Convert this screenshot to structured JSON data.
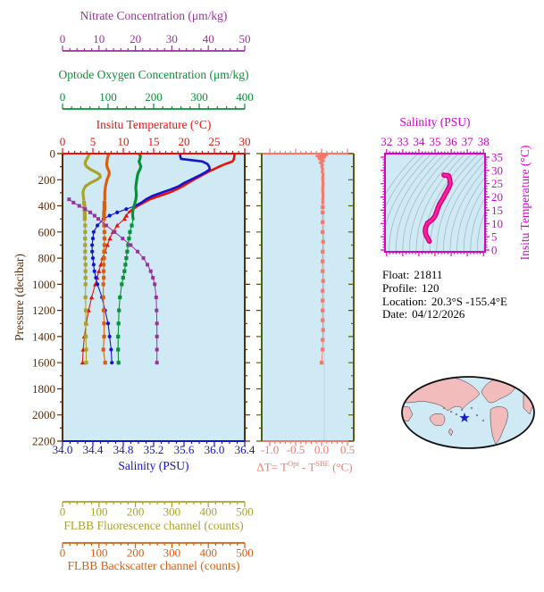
{
  "figure": {
    "nitrate_axis": {
      "title": "Nitrate Concentration (μm/kg)",
      "color": "#993399",
      "min": 0,
      "max": 50,
      "tick_vals": [
        0,
        10,
        20,
        30,
        40,
        50
      ],
      "tick_labels": [
        "0",
        "10",
        "20",
        "30",
        "40",
        "50"
      ],
      "minor_step": 2
    },
    "oxygen_axis": {
      "title": "Optode Oxygen Concentration (μm/kg)",
      "color": "#0a9038",
      "min": 0,
      "max": 400,
      "tick_vals": [
        0,
        100,
        200,
        300,
        400
      ],
      "tick_labels": [
        "0",
        "100",
        "200",
        "300",
        "400"
      ],
      "minor_step": 20
    },
    "temperature_axis": {
      "title": "Insitu Temperature (°C)",
      "color": "#ea130b",
      "min": 0,
      "max": 30,
      "tick_vals": [
        0,
        5,
        10,
        15,
        20,
        25,
        30
      ],
      "tick_labels": [
        "0",
        "5",
        "10",
        "15",
        "20",
        "25",
        "30"
      ],
      "minor_step": 1
    },
    "salinity_axis": {
      "title": "Salinity (PSU)",
      "color": "#1414cc",
      "min": 34.0,
      "max": 36.4,
      "tick_vals": [
        34.0,
        34.4,
        34.8,
        35.2,
        35.6,
        36.0,
        36.4
      ],
      "tick_labels": [
        "34.0",
        "34.4",
        "34.8",
        "35.2",
        "35.6",
        "36.0",
        "36.4"
      ],
      "minor_step": 0.1
    },
    "pressure_axis": {
      "title": "Pressure (decibar)",
      "color": "#5a2d0a",
      "min": 0,
      "max": 2200,
      "tick_vals": [
        0,
        200,
        400,
        600,
        800,
        1000,
        1200,
        1400,
        1600,
        1800,
        2000,
        2200
      ],
      "tick_labels": [
        "0",
        "200",
        "400",
        "600",
        "800",
        "1000",
        "1200",
        "1400",
        "1600",
        "1800",
        "2000",
        "2200"
      ],
      "minor_step": 100
    },
    "fluorescence_axis": {
      "title": "FLBB Fluorescence channel (counts)",
      "color": "#aaa32a",
      "min": 0,
      "max": 500,
      "tick_vals": [
        0,
        100,
        200,
        300,
        400,
        500
      ],
      "tick_labels": [
        "0",
        "100",
        "200",
        "300",
        "400",
        "500"
      ],
      "minor_step": 20
    },
    "backscatter_axis": {
      "title": "FLBB Backscatter channel (counts)",
      "color": "#d95f10",
      "min": 0,
      "max": 500,
      "tick_vals": [
        0,
        100,
        200,
        300,
        400,
        500
      ],
      "tick_labels": [
        "0",
        "100",
        "200",
        "300",
        "400",
        "500"
      ],
      "minor_step": 20
    },
    "delta_axis": {
      "title_parts": {
        "p1": "ΔT= T",
        "sup1": "Opt",
        "p2": " - T",
        "sup2": "SBE",
        "p3": " (°C)"
      },
      "color": "#f4796b",
      "side_color": "#55600f",
      "zero_line_color": "#bdd3db",
      "min": -1.0,
      "max": 0.5,
      "tick_vals": [
        -1.0,
        -0.5,
        0.0,
        0.5
      ],
      "tick_labels": [
        "-1.0",
        "-0.5",
        "0.0",
        "0.5"
      ],
      "minor_step": 0.1
    },
    "ts_plot": {
      "xlabel": "Salinity (PSU)",
      "ylabel": "Insitu Temperature (°C)",
      "frame_color": "#d900cf",
      "curve_color": "#ff1fa4",
      "curve_edge_color": "#cc0070",
      "contour_color": "#9db3bd",
      "xmin": 32,
      "xmax": 38,
      "x_tick_vals": [
        32,
        33,
        34,
        35,
        36,
        37,
        38
      ],
      "x_tick_labels": [
        "32",
        "33",
        "34",
        "35",
        "36",
        "37",
        "38"
      ],
      "x_minor": 0.2,
      "ymin": 0,
      "ymax": 35,
      "y_tick_vals": [
        0,
        5,
        10,
        15,
        20,
        25,
        30,
        35
      ],
      "y_tick_labels": [
        "0",
        "5",
        "10",
        "15",
        "20",
        "25",
        "30",
        "35"
      ],
      "y_minor": 1
    },
    "plot_bg": "#cfeaf5"
  },
  "info": {
    "lines": [
      {
        "label": "Float:",
        "value": "21811"
      },
      {
        "label": "Profile:",
        "value": "120"
      },
      {
        "label": "Location:",
        "value": "20.3°S -155.4°E"
      },
      {
        "label": "Date:",
        "value": "04/12/2026"
      }
    ]
  },
  "map": {
    "ocean": "#cfeaf5",
    "land": "#f3bcbc",
    "outline": "#111111",
    "marker_color": "#1a1acc",
    "marker": "star"
  },
  "chart_data": [
    {
      "id": "profiles_vs_pressure",
      "type": "line",
      "ylabel": "Pressure (decibar)",
      "ylim": [
        0,
        2200
      ],
      "grid": false,
      "pressure": [
        0,
        20,
        40,
        60,
        80,
        100,
        120,
        140,
        160,
        180,
        200,
        225,
        250,
        275,
        300,
        325,
        350,
        375,
        400,
        425,
        450,
        475,
        500,
        550,
        600,
        650,
        700,
        750,
        800,
        850,
        900,
        950,
        1000,
        1100,
        1200,
        1300,
        1400,
        1500,
        1600
      ],
      "series": [
        {
          "name": "Insitu Temperature (°C)",
          "axis": "temperature_axis",
          "color": "#ea130b",
          "marker": "triangle",
          "split_pressure": 450,
          "values": [
            28.3,
            28.3,
            28.2,
            28.0,
            26.8,
            25.8,
            24.9,
            24.0,
            23.2,
            22.4,
            21.6,
            20.7,
            19.8,
            18.7,
            17.5,
            15.9,
            14.4,
            13.4,
            12.4,
            11.6,
            10.9,
            10.5,
            10.2,
            9.0,
            8.3,
            7.8,
            7.4,
            7.0,
            6.6,
            6.3,
            6.0,
            5.7,
            5.4,
            4.8,
            4.3,
            3.9,
            3.6,
            3.4,
            3.3
          ]
        },
        {
          "name": "Salinity (PSU)",
          "axis": "salinity_axis",
          "color": "#1414cc",
          "marker": "circle",
          "split_pressure": 400,
          "values": [
            35.55,
            35.55,
            35.56,
            35.84,
            35.91,
            35.93,
            35.94,
            35.89,
            35.83,
            35.76,
            35.69,
            35.6,
            35.53,
            35.42,
            35.3,
            35.18,
            35.1,
            35.04,
            34.96,
            34.84,
            34.72,
            34.62,
            34.54,
            34.46,
            34.41,
            34.4,
            34.39,
            34.39,
            34.4,
            34.41,
            34.42,
            34.44,
            34.46,
            34.52,
            34.56,
            34.6,
            34.62,
            34.64,
            34.65
          ]
        },
        {
          "name": "Optode Oxygen Concentration (μm/kg)",
          "axis": "oxygen_axis",
          "color": "#0a9038",
          "marker": "square",
          "split_pressure": 500,
          "values": [
            168,
            171,
            170,
            168,
            170,
            172,
            170,
            167,
            165,
            164,
            163,
            162,
            161,
            161,
            162,
            162,
            161,
            159,
            157,
            155,
            154,
            154,
            155,
            152,
            148,
            146,
            144,
            142,
            140,
            138,
            136,
            133,
            130,
            126,
            124,
            123,
            122,
            122,
            123
          ]
        },
        {
          "name": "FLBB Fluorescence channel (counts)",
          "axis": "fluorescence_axis",
          "color": "#aaa32a",
          "marker": "square",
          "split_pressure": 350,
          "values": [
            74,
            71,
            67,
            63,
            62,
            66,
            76,
            90,
            102,
            104,
            94,
            76,
            63,
            58,
            56,
            57,
            58,
            59,
            60,
            60,
            61,
            61,
            61,
            62,
            62,
            62,
            62,
            62,
            62,
            63,
            63,
            63,
            63,
            63,
            64,
            64,
            64,
            65,
            65
          ]
        },
        {
          "name": "FLBB Backscatter channel (counts)",
          "axis": "backscatter_axis",
          "color": "#d95f10",
          "marker": "square",
          "split_pressure": 350,
          "values": [
            126,
            125,
            123,
            122,
            121,
            122,
            125,
            128,
            128,
            125,
            122,
            120,
            118,
            117,
            116,
            116,
            116,
            115,
            115,
            115,
            114,
            114,
            114,
            114,
            115,
            115,
            115,
            114,
            114,
            113,
            113,
            113,
            112,
            112,
            113,
            114,
            114,
            112,
            117
          ]
        },
        {
          "name": "Nitrate Concentration (μm/kg)",
          "axis": "nitrate_axis",
          "color": "#993399",
          "marker": "square",
          "split_pressure": 0,
          "values": [
            null,
            null,
            null,
            null,
            null,
            null,
            null,
            null,
            null,
            null,
            null,
            null,
            null,
            null,
            null,
            null,
            1.8,
            3.0,
            4.6,
            6.2,
            7.6,
            8.8,
            9.8,
            12.0,
            14.3,
            16.5,
            18.7,
            20.6,
            22.2,
            23.3,
            24.2,
            24.8,
            25.3,
            25.7,
            25.8,
            25.9,
            25.9,
            25.9,
            25.9
          ]
        }
      ]
    },
    {
      "id": "delta_t_profile",
      "type": "line",
      "axis": "delta_axis",
      "color": "#f4796b",
      "marker": "square",
      "xlabel": "ΔT= T^Opt - T^SBE (°C)",
      "xlim": [
        -1.0,
        0.5
      ],
      "ylim": [
        0,
        2200
      ],
      "pressure": [
        0,
        10,
        20,
        30,
        40,
        55,
        70,
        85,
        100,
        120,
        140,
        160,
        180,
        200,
        230,
        260,
        290,
        320,
        350,
        380,
        410,
        450,
        525,
        600,
        675,
        750,
        825,
        900,
        975,
        1050,
        1125,
        1200,
        1275,
        1350,
        1425,
        1500,
        1600
      ],
      "values": [
        -0.02,
        0.1,
        -0.09,
        0.06,
        -0.05,
        0.04,
        -0.03,
        0.02,
        0.0,
        0.02,
        0.01,
        0.03,
        0.02,
        0.02,
        0.03,
        0.02,
        0.02,
        0.03,
        0.02,
        0.02,
        0.02,
        0.02,
        0.02,
        0.02,
        0.03,
        0.02,
        0.02,
        0.02,
        0.03,
        0.02,
        0.02,
        0.02,
        0.02,
        0.03,
        0.02,
        0.02,
        0.0
      ]
    },
    {
      "id": "ts_diagram",
      "type": "line",
      "xlabel": "Salinity (PSU)",
      "ylabel": "Insitu Temperature (°C)",
      "xlim": [
        32,
        38
      ],
      "ylim": [
        0,
        35
      ],
      "note": "curve is salinity vs temperature taken from profiles_vs_pressure series; thin gray background curves are density isolines"
    }
  ]
}
